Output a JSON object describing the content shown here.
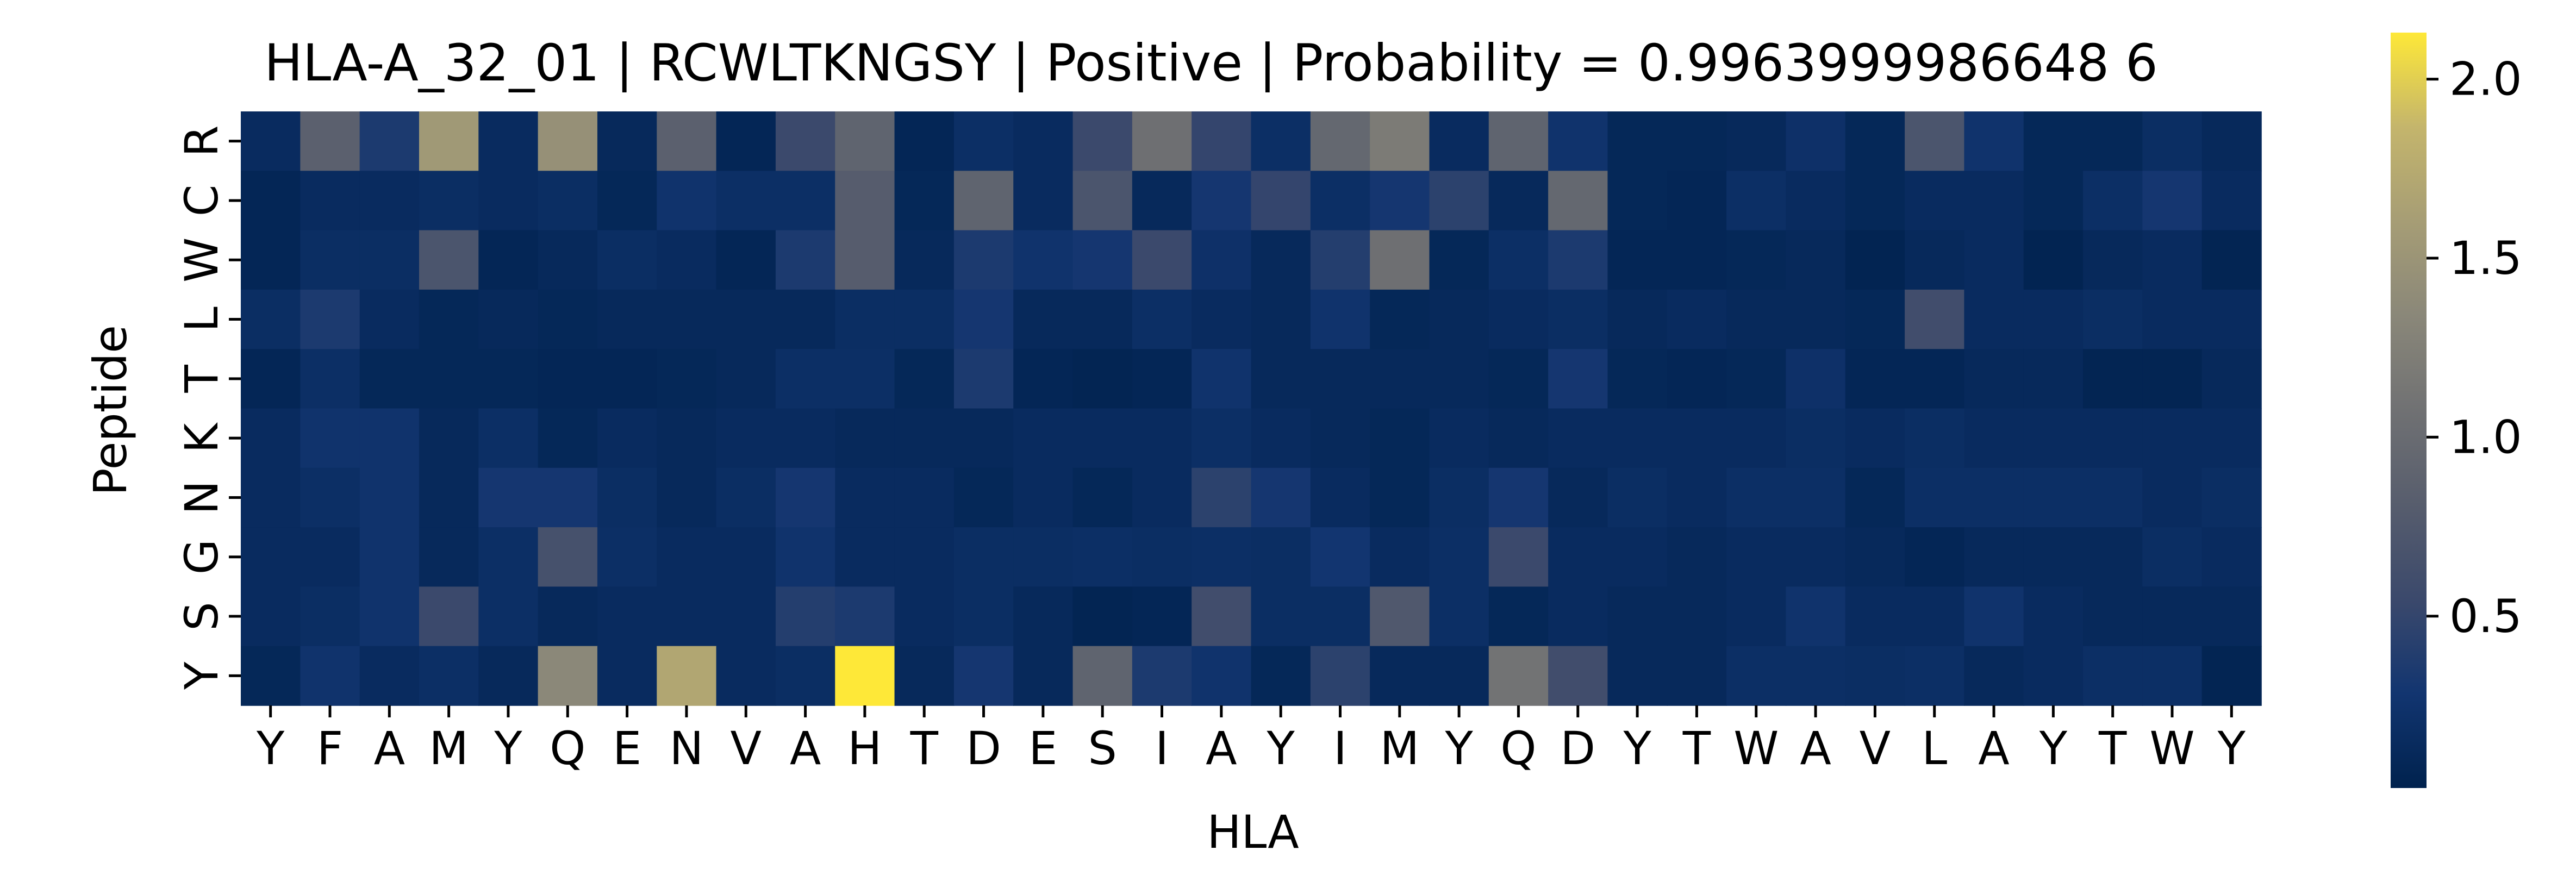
{
  "chart_data": {
    "type": "heatmap",
    "title": "HLA-A_32_01 | RCWLTKNGSY | Positive | Probability = 0.9963999986648 6",
    "xlabel": "HLA",
    "ylabel": "Peptide",
    "x_categories": [
      "Y",
      "F",
      "A",
      "M",
      "Y",
      "Q",
      "E",
      "N",
      "V",
      "A",
      "H",
      "T",
      "D",
      "E",
      "S",
      "I",
      "A",
      "Y",
      "I",
      "M",
      "Y",
      "Q",
      "D",
      "Y",
      "T",
      "W",
      "A",
      "V",
      "L",
      "A",
      "Y",
      "T",
      "W",
      "Y"
    ],
    "y_categories": [
      "R",
      "C",
      "W",
      "L",
      "T",
      "K",
      "N",
      "G",
      "S",
      "Y"
    ],
    "colormap": "cividis",
    "colorbar": {
      "range": [
        0.02,
        2.13
      ],
      "ticks": [
        0.5,
        1.0,
        1.5,
        2.0
      ],
      "tick_labels": [
        "0.5",
        "1.0",
        "1.5",
        "2.0"
      ]
    },
    "values": [
      [
        0.15,
        0.85,
        0.35,
        1.55,
        0.15,
        1.45,
        0.12,
        0.85,
        0.08,
        0.55,
        0.9,
        0.08,
        0.2,
        0.15,
        0.55,
        1.05,
        0.5,
        0.2,
        0.95,
        1.2,
        0.15,
        0.9,
        0.25,
        0.1,
        0.1,
        0.12,
        0.22,
        0.1,
        0.7,
        0.25,
        0.1,
        0.1,
        0.18,
        0.12
      ],
      [
        0.08,
        0.15,
        0.15,
        0.18,
        0.15,
        0.18,
        0.1,
        0.25,
        0.2,
        0.2,
        0.8,
        0.1,
        0.9,
        0.15,
        0.7,
        0.12,
        0.3,
        0.5,
        0.2,
        0.3,
        0.45,
        0.12,
        0.95,
        0.1,
        0.08,
        0.2,
        0.15,
        0.1,
        0.15,
        0.15,
        0.1,
        0.2,
        0.3,
        0.15
      ],
      [
        0.08,
        0.18,
        0.18,
        0.7,
        0.08,
        0.12,
        0.18,
        0.15,
        0.08,
        0.35,
        0.8,
        0.12,
        0.35,
        0.25,
        0.3,
        0.55,
        0.22,
        0.12,
        0.4,
        1.05,
        0.1,
        0.2,
        0.35,
        0.08,
        0.08,
        0.1,
        0.12,
        0.05,
        0.12,
        0.15,
        0.05,
        0.12,
        0.15,
        0.06
      ],
      [
        0.18,
        0.35,
        0.15,
        0.1,
        0.12,
        0.1,
        0.12,
        0.12,
        0.12,
        0.12,
        0.18,
        0.18,
        0.3,
        0.12,
        0.12,
        0.2,
        0.15,
        0.12,
        0.25,
        0.1,
        0.12,
        0.15,
        0.18,
        0.12,
        0.15,
        0.12,
        0.12,
        0.1,
        0.6,
        0.15,
        0.15,
        0.18,
        0.15,
        0.15
      ],
      [
        0.08,
        0.2,
        0.1,
        0.1,
        0.1,
        0.08,
        0.08,
        0.1,
        0.12,
        0.2,
        0.2,
        0.1,
        0.35,
        0.08,
        0.06,
        0.08,
        0.25,
        0.12,
        0.12,
        0.12,
        0.12,
        0.1,
        0.3,
        0.1,
        0.08,
        0.1,
        0.22,
        0.08,
        0.08,
        0.12,
        0.12,
        0.06,
        0.06,
        0.12
      ],
      [
        0.15,
        0.25,
        0.25,
        0.12,
        0.2,
        0.1,
        0.15,
        0.12,
        0.15,
        0.15,
        0.12,
        0.12,
        0.12,
        0.15,
        0.15,
        0.15,
        0.2,
        0.15,
        0.12,
        0.1,
        0.15,
        0.12,
        0.15,
        0.15,
        0.15,
        0.15,
        0.18,
        0.15,
        0.18,
        0.15,
        0.15,
        0.15,
        0.15,
        0.15
      ],
      [
        0.15,
        0.2,
        0.25,
        0.12,
        0.3,
        0.3,
        0.18,
        0.12,
        0.18,
        0.3,
        0.15,
        0.15,
        0.1,
        0.15,
        0.1,
        0.15,
        0.45,
        0.3,
        0.15,
        0.1,
        0.18,
        0.3,
        0.12,
        0.18,
        0.15,
        0.2,
        0.2,
        0.1,
        0.2,
        0.2,
        0.2,
        0.2,
        0.15,
        0.18
      ],
      [
        0.15,
        0.15,
        0.25,
        0.12,
        0.2,
        0.65,
        0.2,
        0.15,
        0.15,
        0.25,
        0.15,
        0.15,
        0.18,
        0.18,
        0.2,
        0.18,
        0.2,
        0.18,
        0.28,
        0.15,
        0.2,
        0.55,
        0.15,
        0.15,
        0.12,
        0.15,
        0.15,
        0.12,
        0.08,
        0.12,
        0.12,
        0.12,
        0.18,
        0.15
      ],
      [
        0.15,
        0.18,
        0.25,
        0.55,
        0.2,
        0.12,
        0.15,
        0.15,
        0.15,
        0.4,
        0.35,
        0.15,
        0.18,
        0.12,
        0.06,
        0.08,
        0.6,
        0.18,
        0.18,
        0.75,
        0.2,
        0.1,
        0.15,
        0.12,
        0.12,
        0.15,
        0.25,
        0.15,
        0.15,
        0.25,
        0.15,
        0.12,
        0.12,
        0.12
      ],
      [
        0.1,
        0.25,
        0.15,
        0.2,
        0.12,
        1.35,
        0.15,
        1.7,
        0.15,
        0.18,
        2.13,
        0.12,
        0.3,
        0.12,
        0.9,
        0.35,
        0.25,
        0.1,
        0.45,
        0.12,
        0.12,
        1.1,
        0.6,
        0.12,
        0.12,
        0.2,
        0.2,
        0.18,
        0.2,
        0.12,
        0.15,
        0.2,
        0.2,
        0.06
      ]
    ]
  }
}
